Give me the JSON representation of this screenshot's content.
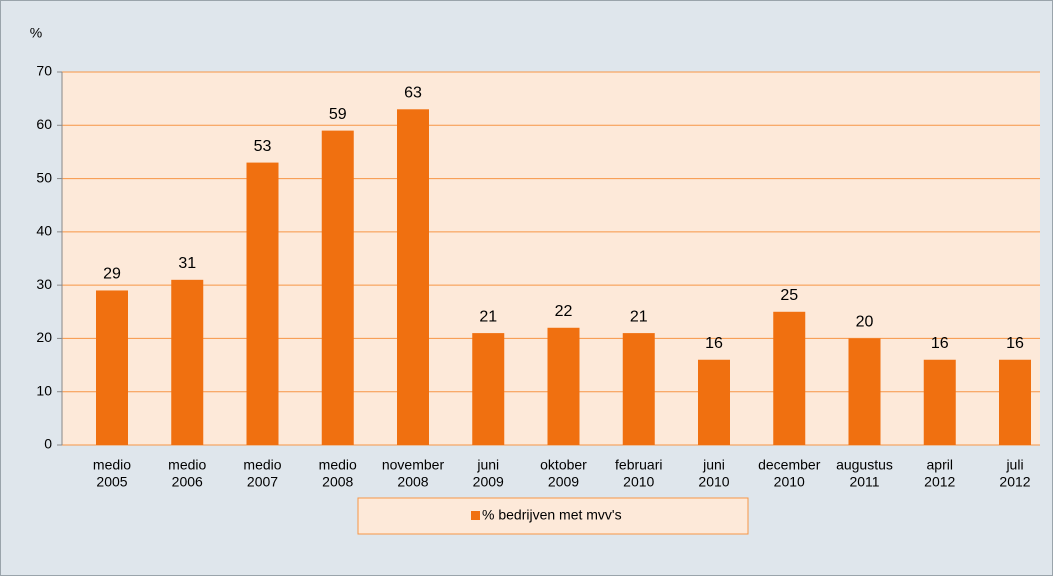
{
  "chart_data": {
    "type": "bar",
    "y_label": "%",
    "categories": [
      [
        "medio",
        "2005"
      ],
      [
        "medio",
        "2006"
      ],
      [
        "medio",
        "2007"
      ],
      [
        "medio",
        "2008"
      ],
      [
        "november",
        "2008"
      ],
      [
        "juni",
        "2009"
      ],
      [
        "oktober",
        "2009"
      ],
      [
        "februari",
        "2010"
      ],
      [
        "juni",
        "2010"
      ],
      [
        "december",
        "2010"
      ],
      [
        "augustus",
        "2011"
      ],
      [
        "april",
        "2012"
      ],
      [
        "juli",
        "2012"
      ]
    ],
    "series": [
      {
        "name": "% bedrijven met mvv's",
        "color": "#f07010",
        "values": [
          29,
          31,
          53,
          59,
          63,
          21,
          22,
          21,
          16,
          25,
          20,
          16,
          16
        ]
      }
    ],
    "ylim": [
      0,
      70
    ],
    "yticks": [
      0,
      10,
      20,
      30,
      40,
      50,
      60,
      70
    ],
    "grid": true,
    "legend": "bottom"
  }
}
